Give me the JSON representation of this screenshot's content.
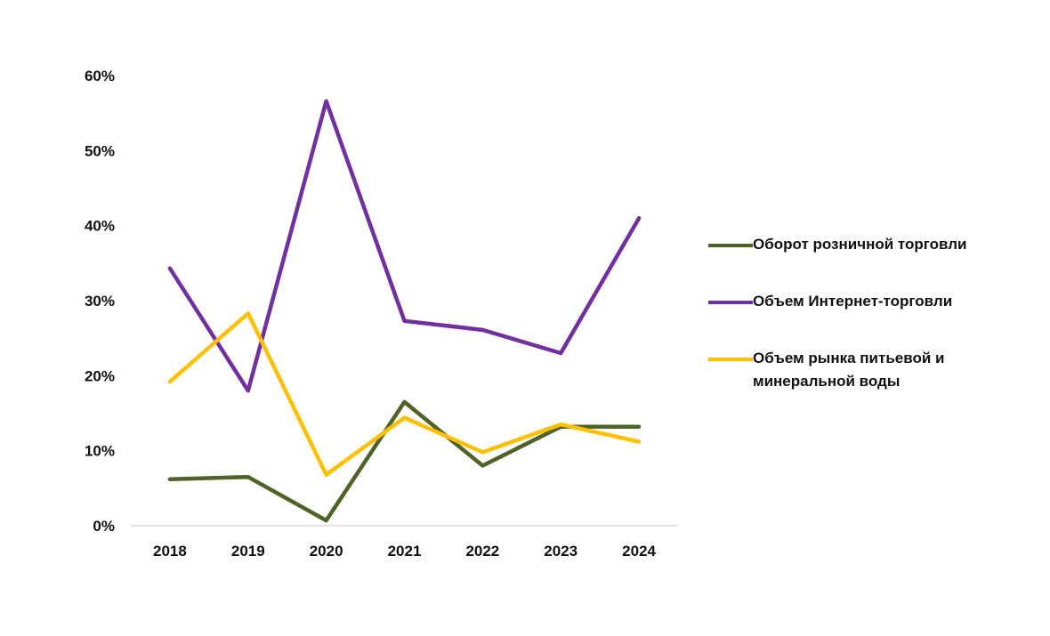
{
  "chart_data": {
    "type": "line",
    "x": [
      "2018",
      "2019",
      "2020",
      "2021",
      "2022",
      "2023",
      "2024"
    ],
    "ylim": [
      0,
      60
    ],
    "yticks": [
      "0%",
      "10%",
      "20%",
      "30%",
      "40%",
      "50%",
      "60%"
    ],
    "grid": false,
    "legend_position": "right",
    "series": [
      {
        "name": "Оборот розничной торговли",
        "color": "#4f6228",
        "values": [
          6.2,
          6.5,
          0.7,
          16.5,
          8.0,
          13.2,
          13.2
        ]
      },
      {
        "name": "Объем Интернет-торговли",
        "color": "#7030a0",
        "values": [
          34.3,
          18.0,
          56.6,
          27.3,
          26.1,
          23.0,
          41.0
        ]
      },
      {
        "name": "Объем рынка питьевой и минеральной воды",
        "color": "#ffc000",
        "values": [
          19.2,
          28.3,
          6.8,
          14.4,
          9.8,
          13.5,
          11.2
        ]
      }
    ]
  }
}
